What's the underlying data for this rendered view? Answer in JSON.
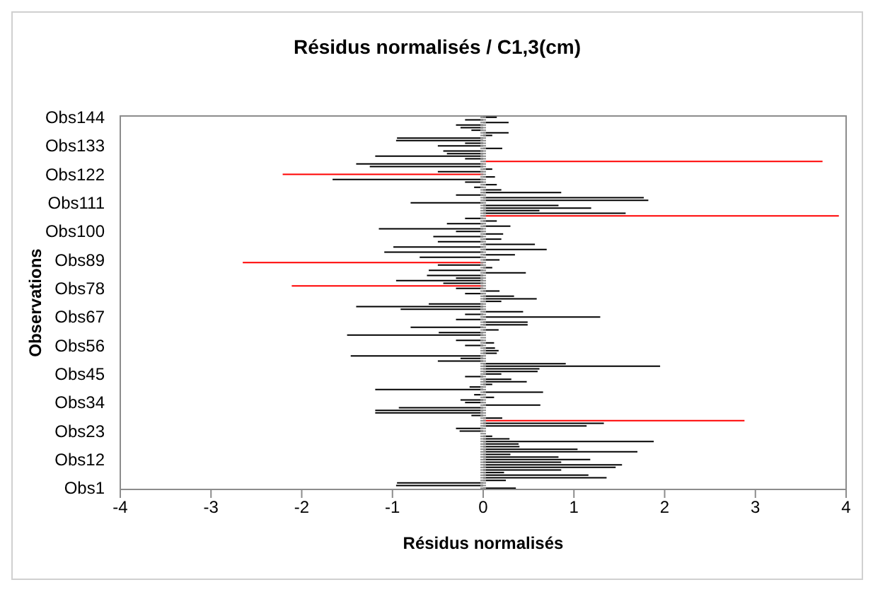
{
  "chart_data": {
    "type": "bar",
    "orientation": "horizontal",
    "title": "Résidus normalisés / C1,3(cm)",
    "xlabel": "Résidus normalisés",
    "ylabel": "Observations",
    "categories": [
      "Obs144",
      null,
      null,
      null,
      null,
      null,
      null,
      null,
      null,
      null,
      null,
      "Obs133",
      null,
      null,
      null,
      null,
      null,
      null,
      null,
      null,
      null,
      null,
      "Obs122",
      null,
      null,
      null,
      null,
      null,
      null,
      null,
      null,
      null,
      null,
      "Obs111",
      null,
      null,
      null,
      null,
      null,
      null,
      null,
      null,
      null,
      null,
      "Obs100",
      null,
      null,
      null,
      null,
      null,
      null,
      null,
      null,
      null,
      null,
      "Obs89",
      null,
      null,
      null,
      null,
      null,
      null,
      null,
      null,
      null,
      null,
      "Obs78",
      null,
      null,
      null,
      null,
      null,
      null,
      null,
      null,
      null,
      null,
      "Obs67",
      null,
      null,
      null,
      null,
      null,
      null,
      null,
      null,
      null,
      null,
      "Obs56",
      null,
      null,
      null,
      null,
      null,
      null,
      null,
      null,
      null,
      null,
      "Obs45",
      null,
      null,
      null,
      null,
      null,
      null,
      null,
      null,
      null,
      null,
      "Obs34",
      null,
      null,
      null,
      null,
      null,
      null,
      null,
      null,
      null,
      null,
      "Obs23",
      null,
      null,
      null,
      null,
      null,
      null,
      null,
      null,
      null,
      null,
      "Obs12",
      null,
      null,
      null,
      null,
      null,
      null,
      null,
      null,
      null,
      null,
      "Obs1"
    ],
    "values": [
      0.15,
      -0.2,
      0.28,
      -0.3,
      -0.25,
      -0.13,
      0.28,
      0.1,
      -0.95,
      -0.96,
      -0.2,
      -0.5,
      0.21,
      -0.44,
      -0.4,
      -1.19,
      -0.2,
      3.74,
      -1.4,
      -1.25,
      0.1,
      -0.5,
      -2.21,
      0.13,
      -1.66,
      -0.2,
      0.15,
      -0.1,
      0.2,
      0.86,
      -0.3,
      1.77,
      1.82,
      -0.8,
      0.83,
      1.19,
      0.62,
      1.57,
      3.92,
      -0.2,
      0.15,
      -0.4,
      0.3,
      -1.15,
      -0.3,
      0.22,
      -0.55,
      0.2,
      -0.5,
      0.57,
      -0.99,
      0.7,
      -1.09,
      0.35,
      -0.7,
      0.18,
      -2.65,
      -0.5,
      0.1,
      -0.6,
      0.47,
      -0.62,
      -0.3,
      -0.96,
      -0.44,
      -2.11,
      -0.3,
      0.18,
      -0.2,
      0.34,
      0.59,
      0.2,
      -0.6,
      -1.4,
      -0.91,
      0.44,
      -0.2,
      1.29,
      -0.3,
      0.49,
      0.49,
      -0.8,
      0.17,
      -0.49,
      -1.5,
      null,
      -0.3,
      0.12,
      -0.2,
      0.13,
      0.17,
      0.15,
      -1.46,
      -0.25,
      -0.5,
      0.91,
      1.95,
      0.62,
      0.6,
      0.2,
      -0.2,
      0.31,
      0.48,
      0.1,
      -0.15,
      -1.19,
      0.66,
      -0.1,
      0.12,
      -0.25,
      -0.2,
      0.63,
      -0.93,
      -1.19,
      -1.19,
      -0.13,
      0.21,
      2.88,
      1.33,
      1.14,
      -0.3,
      -0.26,
      null,
      0.1,
      0.29,
      1.88,
      0.39,
      0.4,
      1.04,
      1.7,
      0.3,
      0.83,
      1.18,
      0.86,
      1.53,
      1.46,
      0.86,
      0.23,
      1.16,
      1.36,
      0.25,
      -0.95,
      -0.96,
      0.36
    ],
    "colors": [
      "#000000",
      "#000000",
      "#000000",
      "#000000",
      "#000000",
      "#000000",
      "#000000",
      "#000000",
      "#000000",
      "#000000",
      "#000000",
      "#000000",
      "#000000",
      "#000000",
      "#000000",
      "#000000",
      "#000000",
      "#ff0000",
      "#000000",
      "#000000",
      "#000000",
      "#000000",
      "#ff0000",
      "#000000",
      "#000000",
      "#000000",
      "#000000",
      "#000000",
      "#000000",
      "#000000",
      "#000000",
      "#000000",
      "#000000",
      "#000000",
      "#000000",
      "#000000",
      "#000000",
      "#000000",
      "#ff0000",
      "#000000",
      "#000000",
      "#000000",
      "#000000",
      "#000000",
      "#000000",
      "#000000",
      "#000000",
      "#000000",
      "#000000",
      "#000000",
      "#000000",
      "#000000",
      "#000000",
      "#000000",
      "#000000",
      "#000000",
      "#ff0000",
      "#000000",
      "#000000",
      "#000000",
      "#000000",
      "#000000",
      "#000000",
      "#000000",
      "#000000",
      "#ff0000",
      "#000000",
      "#000000",
      "#000000",
      "#000000",
      "#000000",
      "#000000",
      "#000000",
      "#000000",
      "#000000",
      "#000000",
      "#000000",
      "#000000",
      "#000000",
      "#000000",
      "#000000",
      "#000000",
      "#000000",
      "#000000",
      "#000000",
      "#000000",
      "#000000",
      "#000000",
      "#000000",
      "#000000",
      "#000000",
      "#000000",
      "#000000",
      "#000000",
      "#000000",
      "#000000",
      "#000000",
      "#000000",
      "#000000",
      "#000000",
      "#000000",
      "#000000",
      "#000000",
      "#000000",
      "#000000",
      "#000000",
      "#000000",
      "#000000",
      "#000000",
      "#000000",
      "#000000",
      "#000000",
      "#000000",
      "#000000",
      "#000000",
      "#000000",
      "#000000",
      "#ff0000",
      "#000000",
      "#000000",
      "#000000",
      "#000000",
      "#000000",
      "#000000",
      "#000000",
      "#000000",
      "#000000",
      "#000000",
      "#000000",
      "#000000",
      "#000000",
      "#000000",
      "#000000",
      "#000000",
      "#000000",
      "#000000",
      "#000000",
      "#000000",
      "#000000",
      "#000000",
      "#000000",
      "#000000",
      "#000000",
      "#000000"
    ],
    "xlim": [
      -4,
      4
    ],
    "xticks": [
      -4,
      -3,
      -2,
      -1,
      0,
      1,
      2,
      3,
      4
    ]
  }
}
